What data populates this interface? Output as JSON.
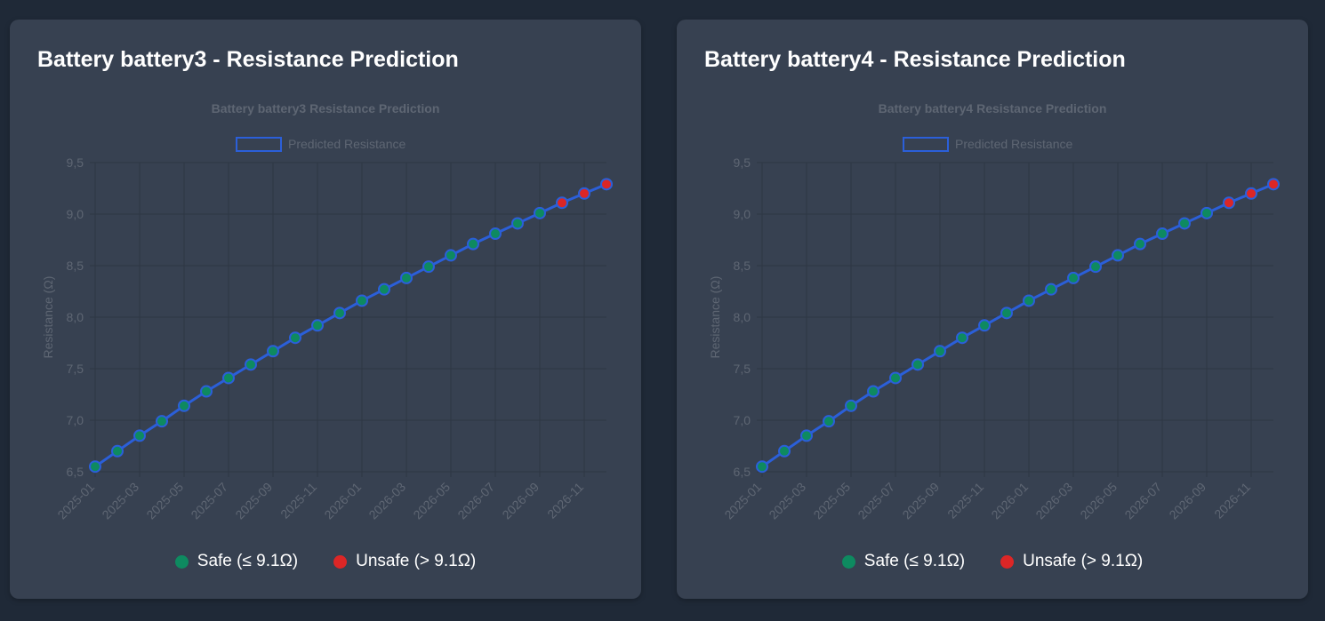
{
  "colors": {
    "page_bg": "#1f2937",
    "card_bg": "#374151",
    "line": "#2b5fd9",
    "safe": "#0e8a60",
    "unsafe": "#dc2626",
    "grid": "#2e3644",
    "muted_text": "#5e6673"
  },
  "legend": {
    "safe_label": "Safe (≤ 9.1Ω)",
    "unsafe_label": "Unsafe (> 9.1Ω)"
  },
  "cards": [
    {
      "heading": "Battery battery3 - Resistance Prediction"
    },
    {
      "heading": "Battery battery4 - Resistance Prediction"
    }
  ],
  "chart_data": [
    {
      "type": "line",
      "title": "Battery battery3 Resistance Prediction",
      "ylabel": "Resistance (Ω)",
      "xlabel": "",
      "ylim": [
        6.5,
        9.5
      ],
      "yticks": [
        "6,5",
        "7,0",
        "7,5",
        "8,0",
        "8,5",
        "9,0",
        "9,5"
      ],
      "safe_threshold": 9.1,
      "x": [
        "2025-01",
        "2025-02",
        "2025-03",
        "2025-04",
        "2025-05",
        "2025-06",
        "2025-07",
        "2025-08",
        "2025-09",
        "2025-10",
        "2025-11",
        "2025-12",
        "2026-01",
        "2026-02",
        "2026-03",
        "2026-04",
        "2026-05",
        "2026-06",
        "2026-07",
        "2026-08",
        "2026-09",
        "2026-10",
        "2026-11",
        "2026-12"
      ],
      "xtick_labels": [
        "2025-01",
        "2025-03",
        "2025-05",
        "2025-07",
        "2025-09",
        "2025-11",
        "2026-01",
        "2026-03",
        "2026-05",
        "2026-07",
        "2026-09",
        "2026-11"
      ],
      "series": [
        {
          "name": "Predicted Resistance",
          "values": [
            6.55,
            6.7,
            6.85,
            6.99,
            7.14,
            7.28,
            7.41,
            7.54,
            7.67,
            7.8,
            7.92,
            8.04,
            8.16,
            8.27,
            8.38,
            8.49,
            8.6,
            8.71,
            8.81,
            8.91,
            9.01,
            9.11,
            9.2,
            9.29
          ]
        }
      ],
      "grid": true,
      "legend_position": "top"
    },
    {
      "type": "line",
      "title": "Battery battery4 Resistance Prediction",
      "ylabel": "Resistance (Ω)",
      "xlabel": "",
      "ylim": [
        6.5,
        9.5
      ],
      "yticks": [
        "6,5",
        "7,0",
        "7,5",
        "8,0",
        "8,5",
        "9,0",
        "9,5"
      ],
      "safe_threshold": 9.1,
      "x": [
        "2025-01",
        "2025-02",
        "2025-03",
        "2025-04",
        "2025-05",
        "2025-06",
        "2025-07",
        "2025-08",
        "2025-09",
        "2025-10",
        "2025-11",
        "2025-12",
        "2026-01",
        "2026-02",
        "2026-03",
        "2026-04",
        "2026-05",
        "2026-06",
        "2026-07",
        "2026-08",
        "2026-09",
        "2026-10",
        "2026-11",
        "2026-12"
      ],
      "xtick_labels": [
        "2025-01",
        "2025-03",
        "2025-05",
        "2025-07",
        "2025-09",
        "2025-11",
        "2026-01",
        "2026-03",
        "2026-05",
        "2026-07",
        "2026-09",
        "2026-11"
      ],
      "series": [
        {
          "name": "Predicted Resistance",
          "values": [
            6.55,
            6.7,
            6.85,
            6.99,
            7.14,
            7.28,
            7.41,
            7.54,
            7.67,
            7.8,
            7.92,
            8.04,
            8.16,
            8.27,
            8.38,
            8.49,
            8.6,
            8.71,
            8.81,
            8.91,
            9.01,
            9.11,
            9.2,
            9.29
          ]
        }
      ],
      "grid": true,
      "legend_position": "top"
    }
  ]
}
